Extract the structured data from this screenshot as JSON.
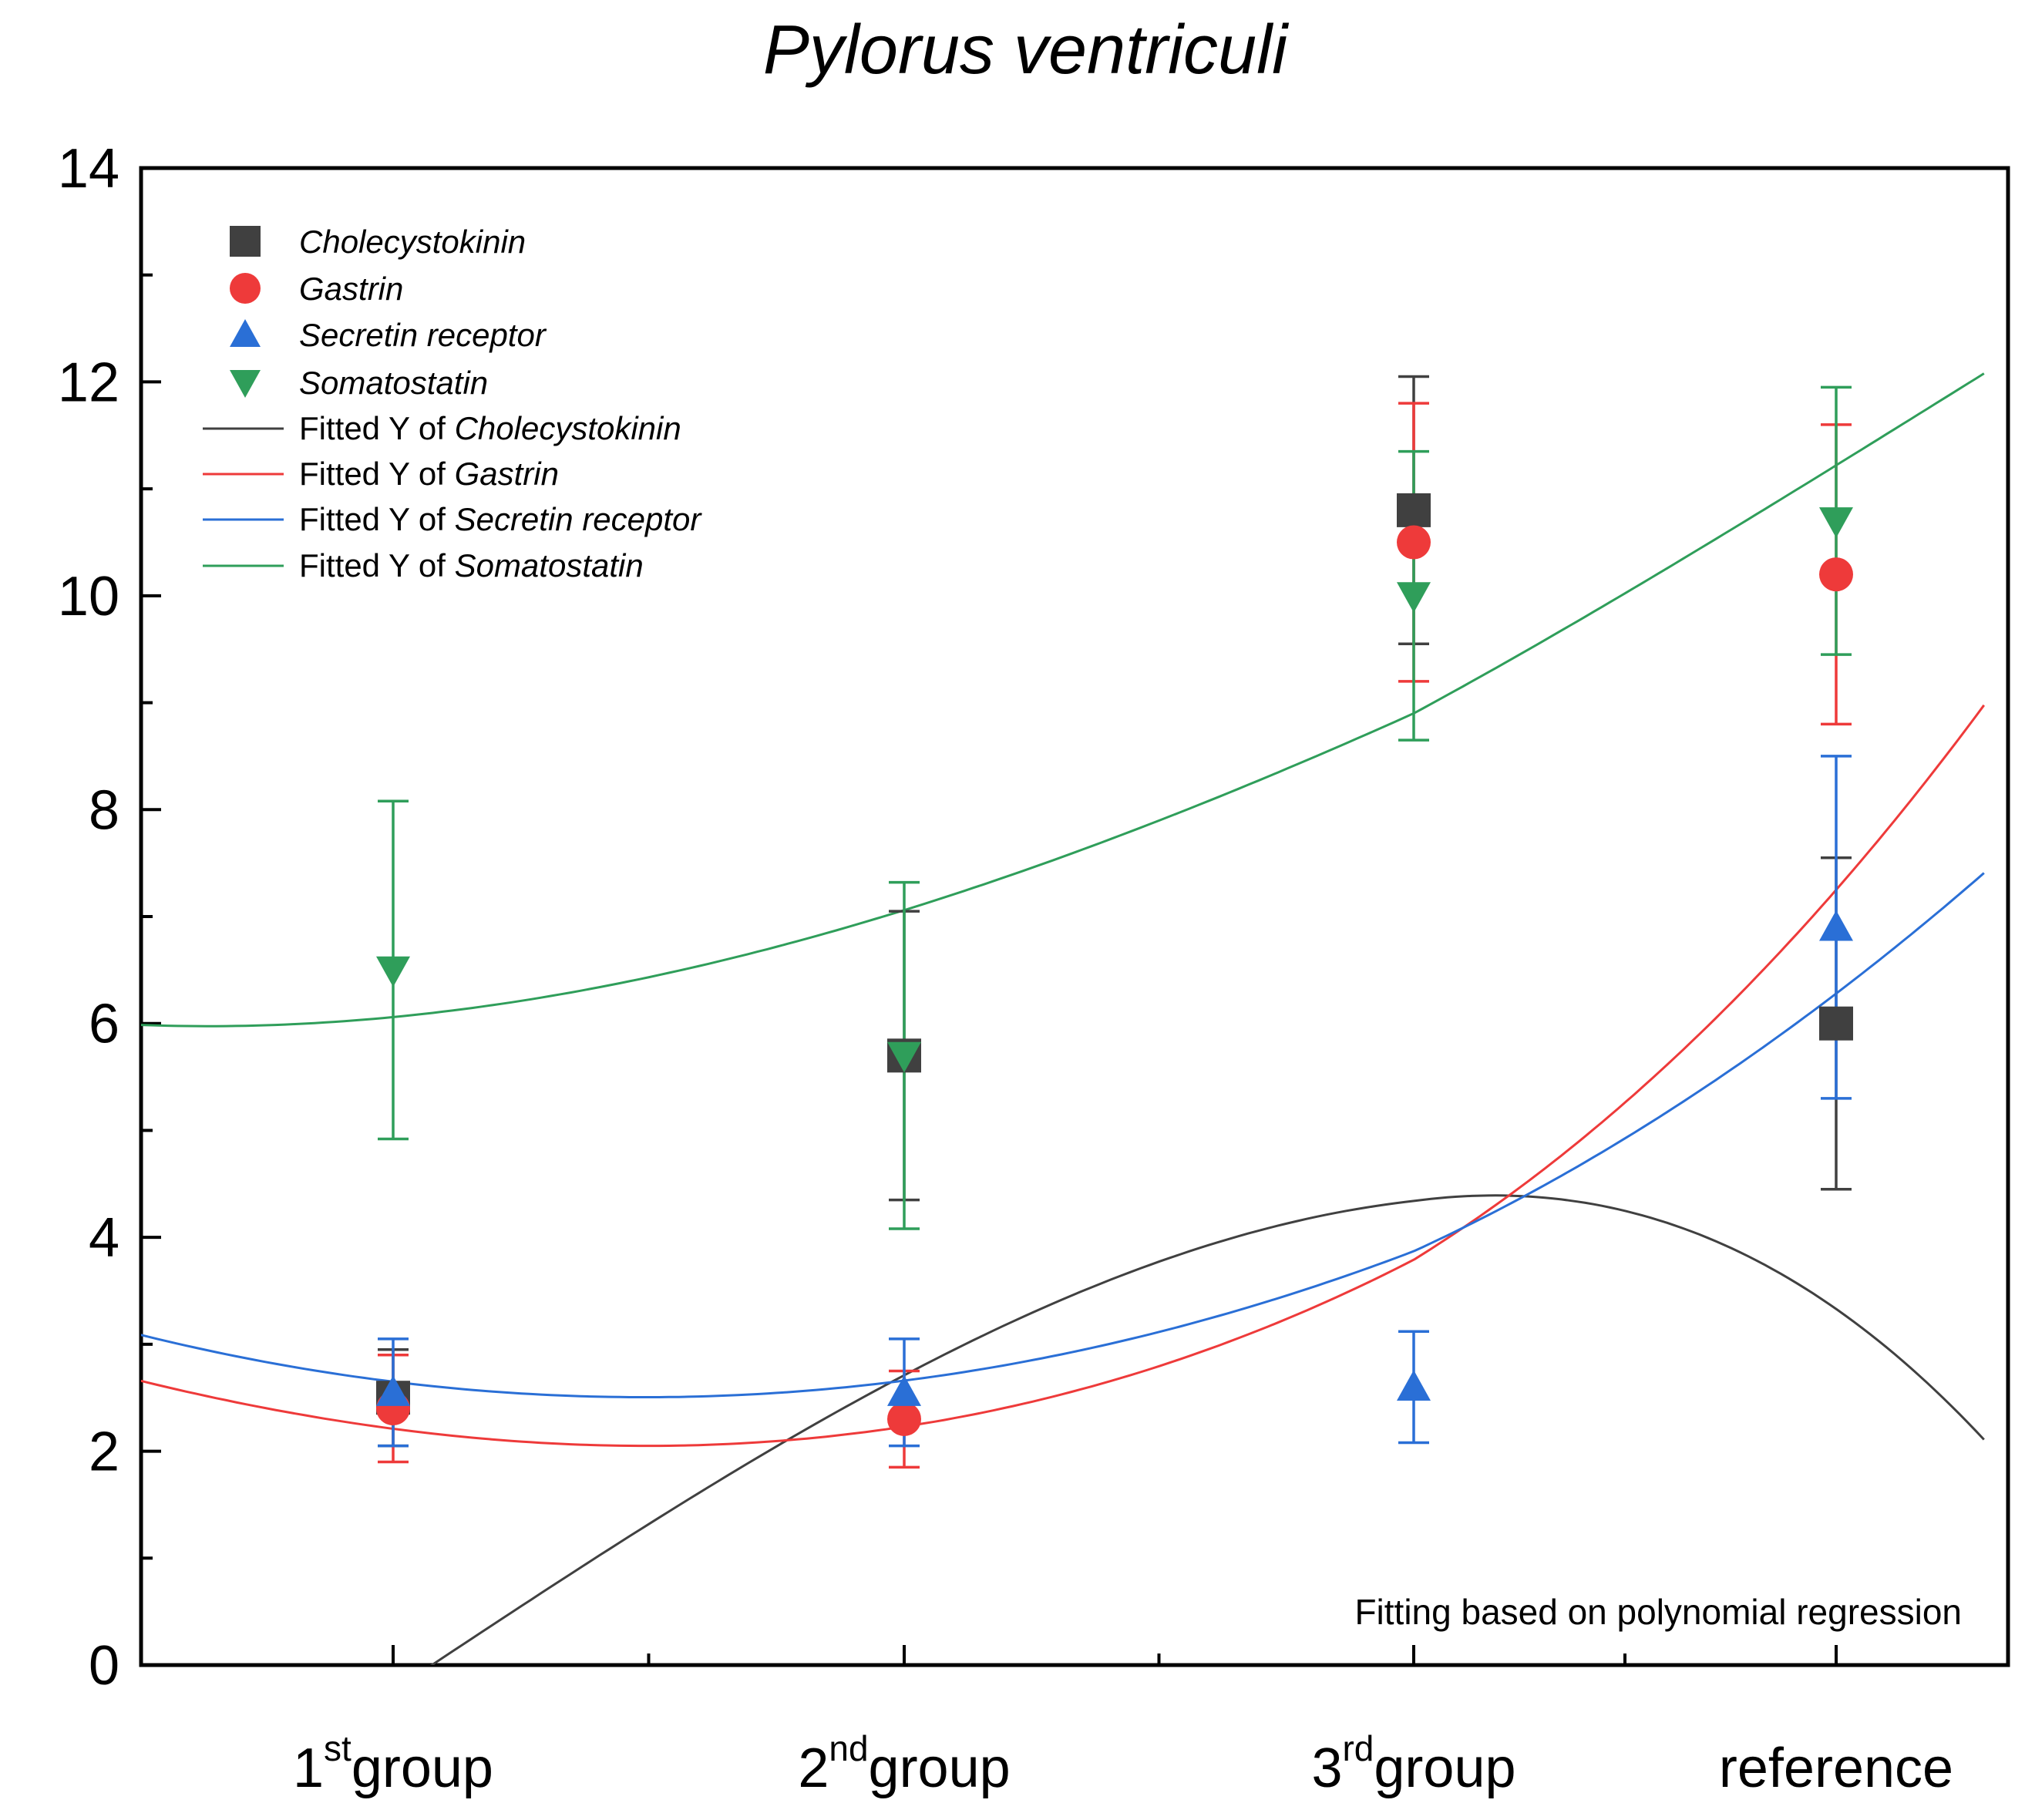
{
  "chart_data": {
    "type": "scatter",
    "title": "Pylorus ventriculi",
    "xlabel": "",
    "ylabel": "",
    "ylim": [
      0,
      14
    ],
    "yticks": [
      "0",
      "2",
      "4",
      "6",
      "8",
      "10",
      "12",
      "14"
    ],
    "categories": [
      {
        "num": "1",
        "sup": "st",
        "word": "group"
      },
      {
        "num": "2",
        "sup": "nd",
        "word": "group"
      },
      {
        "num": "3",
        "sup": "rd",
        "word": "group"
      },
      {
        "num": "",
        "sup": "",
        "word": "reference"
      }
    ],
    "series": [
      {
        "name": "Cholecystokinin",
        "marker": "square",
        "color": "#404040",
        "values": [
          2.5,
          5.7,
          10.8,
          6.0
        ],
        "errors": [
          0.45,
          1.35,
          1.25,
          1.55
        ],
        "fit": [
          -0.24,
          3.17,
          0.0,
          -0.22
        ]
      },
      {
        "name": "Gastrin",
        "marker": "circle",
        "color": "#ee3a3a",
        "values": [
          2.4,
          2.3,
          10.5,
          10.2
        ],
        "errors": [
          0.5,
          0.45,
          1.3,
          1.4
        ],
        "fit": [
          2.21,
          -0.63,
          0.59,
          0.06
        ]
      },
      {
        "name": "Secretin receptor",
        "marker": "triangle-up",
        "color": "#2a6fd6",
        "values": [
          2.55,
          2.55,
          2.6,
          6.9
        ],
        "errors": [
          0.5,
          0.5,
          0.52,
          1.6
        ],
        "fit": [
          2.65,
          -0.59,
          0.6,
          0.0
        ]
      },
      {
        "name": "Somatostatin",
        "marker": "triangle-down",
        "color": "#2f9e5a",
        "values": [
          6.5,
          5.7,
          10.0,
          10.7
        ],
        "errors": [
          1.58,
          1.62,
          1.35,
          1.25
        ],
        "fit": [
          6.06,
          0.46,
          0.6,
          -0.06
        ]
      }
    ],
    "legend_fit_labels": [
      "Fitted Y of",
      "Fitted Y of",
      "Fitted Y of",
      "Fitted Y of"
    ],
    "annotation": "Fitting based on polynomial regression",
    "legend_position": "top-left"
  }
}
